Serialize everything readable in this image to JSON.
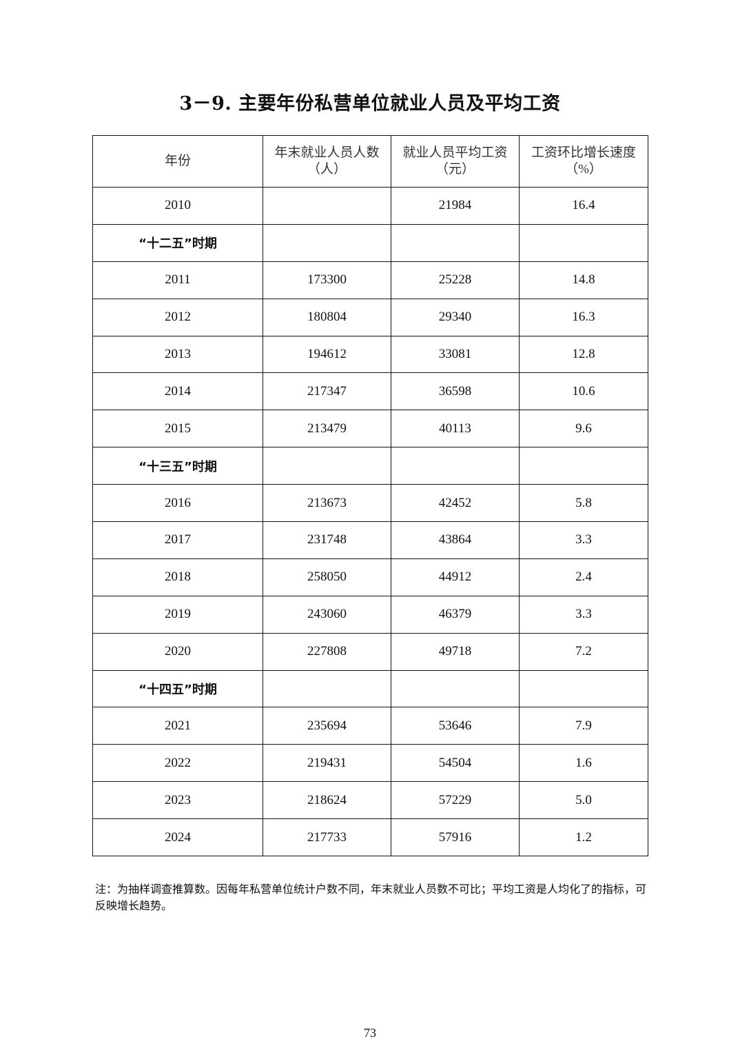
{
  "title": "3－9. 主要年份私营单位就业人员及平均工资",
  "table": {
    "headers": [
      {
        "line1": "年份",
        "line2": ""
      },
      {
        "line1": "年末就业人员人数",
        "line2": "（人）"
      },
      {
        "line1": "就业人员平均工资",
        "line2": "（元）"
      },
      {
        "line1": "工资环比增长速度",
        "line2": "（%）"
      }
    ],
    "rows": [
      {
        "year": "2010",
        "employees": "",
        "avg_wage": "21984",
        "growth": "16.4"
      },
      {
        "period": "“十二五”时期"
      },
      {
        "year": "2011",
        "employees": "173300",
        "avg_wage": "25228",
        "growth": "14.8"
      },
      {
        "year": "2012",
        "employees": "180804",
        "avg_wage": "29340",
        "growth": "16.3"
      },
      {
        "year": "2013",
        "employees": "194612",
        "avg_wage": "33081",
        "growth": "12.8"
      },
      {
        "year": "2014",
        "employees": "217347",
        "avg_wage": "36598",
        "growth": "10.6"
      },
      {
        "year": "2015",
        "employees": "213479",
        "avg_wage": "40113",
        "growth": "9.6"
      },
      {
        "period": "“十三五”时期"
      },
      {
        "year": "2016",
        "employees": "213673",
        "avg_wage": "42452",
        "growth": "5.8"
      },
      {
        "year": "2017",
        "employees": "231748",
        "avg_wage": "43864",
        "growth": "3.3"
      },
      {
        "year": "2018",
        "employees": "258050",
        "avg_wage": "44912",
        "growth": "2.4"
      },
      {
        "year": "2019",
        "employees": "243060",
        "avg_wage": "46379",
        "growth": "3.3"
      },
      {
        "year": "2020",
        "employees": "227808",
        "avg_wage": "49718",
        "growth": "7.2"
      },
      {
        "period": "“十四五”时期"
      },
      {
        "year": "2021",
        "employees": "235694",
        "avg_wage": "53646",
        "growth": "7.9"
      },
      {
        "year": "2022",
        "employees": "219431",
        "avg_wage": "54504",
        "growth": "1.6"
      },
      {
        "year": "2023",
        "employees": "218624",
        "avg_wage": "57229",
        "growth": "5.0"
      },
      {
        "year": "2024",
        "employees": "217733",
        "avg_wage": "57916",
        "growth": "1.2"
      }
    ]
  },
  "note": "注：为抽样调查推算数。因每年私营单位统计户数不同，年末就业人员数不可比；平均工资是人均化了的指标，可反映增长趋势。",
  "page_number": "73"
}
